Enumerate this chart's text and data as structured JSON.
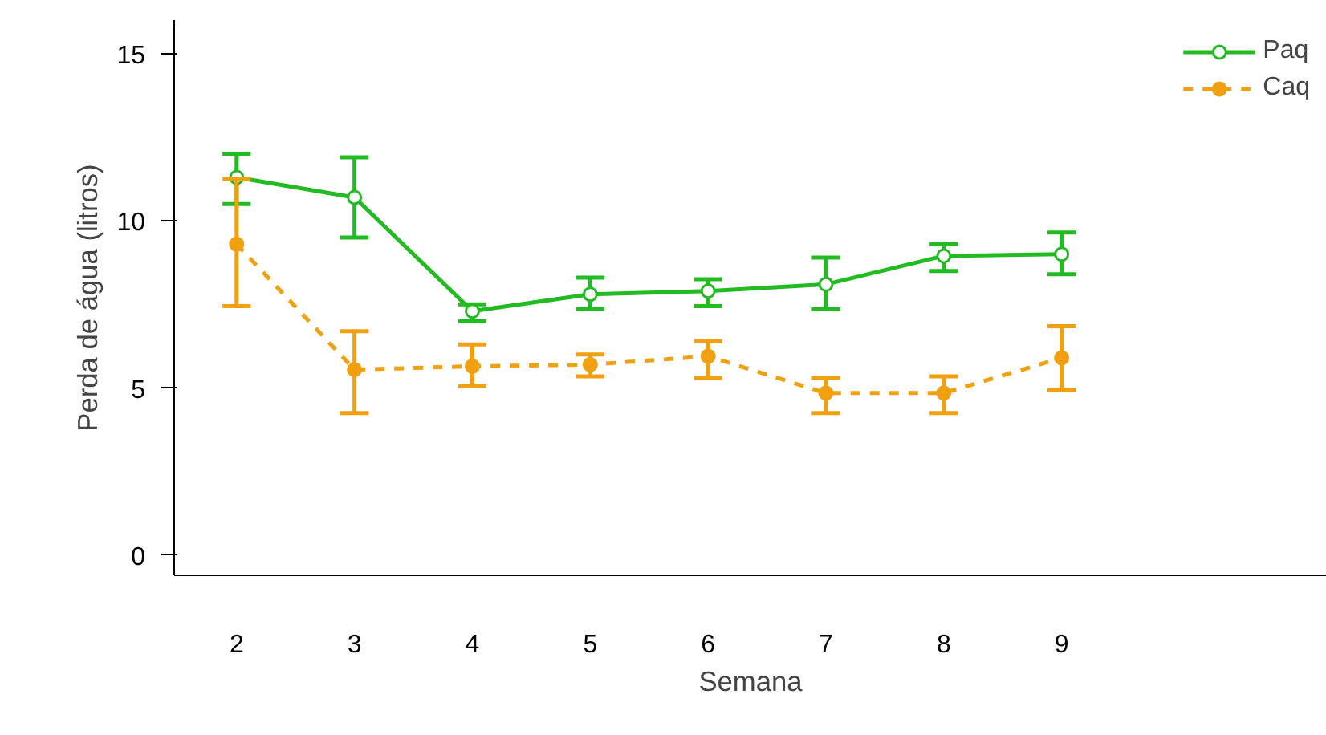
{
  "chart_data": {
    "type": "line",
    "xlabel": "Semana",
    "ylabel": "Perda de água (litros)",
    "x": [
      2,
      3,
      4,
      5,
      6,
      7,
      8,
      9
    ],
    "xlim": [
      1.47,
      11.25
    ],
    "xticks": [
      2,
      3,
      4,
      5,
      6,
      7,
      8,
      9
    ],
    "ylim": [
      -0.6,
      16.0
    ],
    "yticks": [
      0,
      5,
      10,
      15
    ],
    "series": [
      {
        "name": "Paq",
        "color": "#22bb22",
        "line_style": "solid",
        "values": [
          11.3,
          10.7,
          7.3,
          7.8,
          7.9,
          8.1,
          8.95,
          9.0
        ],
        "errors": [
          [
            10.5,
            12.0
          ],
          [
            9.5,
            11.9
          ],
          [
            7.0,
            7.5
          ],
          [
            7.35,
            8.3
          ],
          [
            7.45,
            8.25
          ],
          [
            7.35,
            8.9
          ],
          [
            8.5,
            9.3
          ],
          [
            8.4,
            9.65
          ]
        ]
      },
      {
        "name": "Caq",
        "color": "#f0a010",
        "line_style": "dashed",
        "values": [
          9.3,
          5.55,
          5.65,
          5.7,
          5.95,
          4.85,
          4.85,
          5.9
        ],
        "errors": [
          [
            7.45,
            11.25
          ],
          [
            4.25,
            6.7
          ],
          [
            5.05,
            6.3
          ],
          [
            5.35,
            6.0
          ],
          [
            5.3,
            6.4
          ],
          [
            4.25,
            5.3
          ],
          [
            4.25,
            5.35
          ],
          [
            4.95,
            6.85
          ]
        ]
      }
    ],
    "marker": "circle",
    "grid": false,
    "legend": "top right"
  }
}
